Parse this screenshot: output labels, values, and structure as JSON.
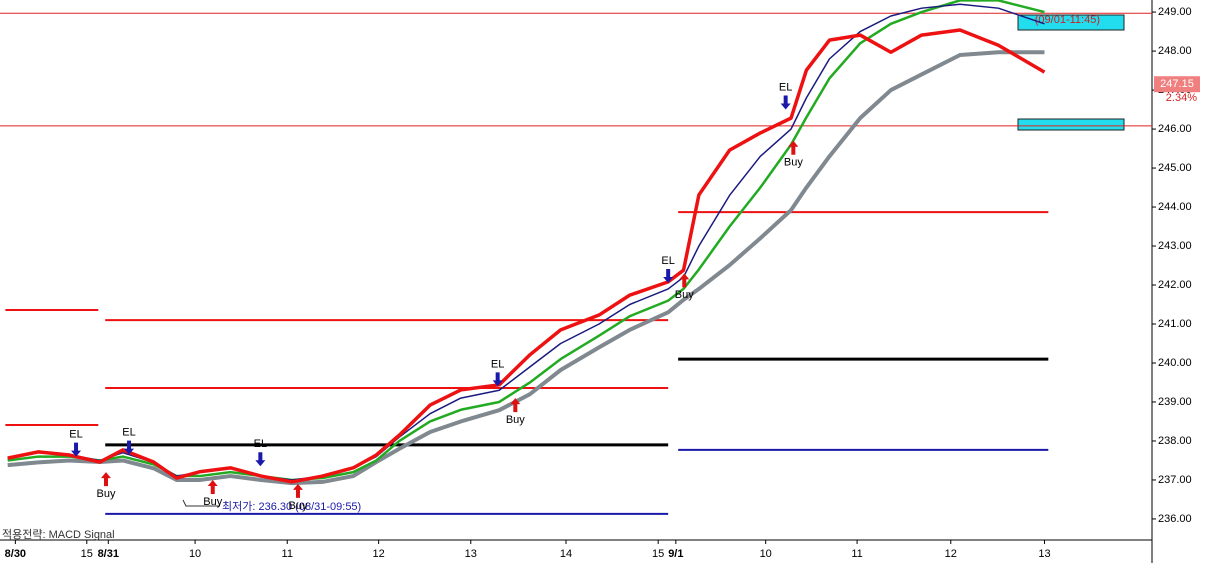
{
  "chart_data": {
    "type": "line",
    "strategy": "적용전략: MACD Signal",
    "low_note": "최저가: 236.30 (08/31-09:55)",
    "high_note": "(09/01-11:45)",
    "last_price": 247.15,
    "change_label": "2.34%",
    "xlim": [
      0,
      150
    ],
    "ylim": [
      235.46,
      249.31
    ],
    "xticks": [
      {
        "value": 2,
        "label": "8/30"
      },
      {
        "value": 11.3,
        "label": "15"
      },
      {
        "value": 14.1,
        "label": "8/31"
      },
      {
        "value": 25.4,
        "label": "10"
      },
      {
        "value": 37.4,
        "label": "11"
      },
      {
        "value": 49.3,
        "label": "12"
      },
      {
        "value": 61.3,
        "label": "13"
      },
      {
        "value": 73.7,
        "label": "14"
      },
      {
        "value": 85.7,
        "label": "15"
      },
      {
        "value": 88,
        "label": "9/1"
      },
      {
        "value": 99.7,
        "label": "10"
      },
      {
        "value": 111.6,
        "label": "11"
      },
      {
        "value": 123.8,
        "label": "12"
      },
      {
        "value": 136,
        "label": "13"
      }
    ],
    "yticks": [
      {
        "value": 249,
        "label": "249.00"
      },
      {
        "value": 248,
        "label": "248.00"
      },
      {
        "value": 247,
        "label": "247.00"
      },
      {
        "value": 246,
        "label": "246.00"
      },
      {
        "value": 245,
        "label": "245.00"
      },
      {
        "value": 244,
        "label": "244.00"
      },
      {
        "value": 243,
        "label": "243.00"
      },
      {
        "value": 242,
        "label": "242.00"
      },
      {
        "value": 241,
        "label": "241.00"
      },
      {
        "value": 240,
        "label": "240.00"
      },
      {
        "value": 239,
        "label": "239.00"
      },
      {
        "value": 238,
        "label": "238.00"
      },
      {
        "value": 237,
        "label": "237.00"
      },
      {
        "value": 236,
        "label": "236.00"
      }
    ],
    "x": [
      1,
      5,
      9,
      13,
      16,
      20,
      23,
      26,
      30,
      34,
      38,
      42,
      46,
      49,
      52,
      56,
      60,
      65,
      69,
      73,
      78,
      82,
      87,
      89,
      91,
      95,
      99,
      103,
      105,
      108,
      112,
      116,
      120,
      125,
      130,
      136
    ],
    "series": [
      {
        "color": "#808890",
        "width": 4,
        "values": [
          237.38,
          237.45,
          237.5,
          237.46,
          237.5,
          237.3,
          237.0,
          237.0,
          237.1,
          237.0,
          236.92,
          236.95,
          237.1,
          237.46,
          237.8,
          238.23,
          238.5,
          238.79,
          239.2,
          239.82,
          240.4,
          240.85,
          241.3,
          241.62,
          241.9,
          242.51,
          243.2,
          243.92,
          244.5,
          245.3,
          246.28,
          247.0,
          247.4,
          247.9,
          247.97,
          247.97
        ]
      },
      {
        "color": "#22aa22",
        "width": 2.5,
        "values": [
          237.5,
          237.6,
          237.6,
          237.5,
          237.6,
          237.4,
          237.1,
          237.1,
          237.2,
          237.1,
          237.0,
          237.05,
          237.2,
          237.5,
          238.0,
          238.5,
          238.8,
          239.0,
          239.5,
          240.1,
          240.7,
          241.2,
          241.6,
          241.9,
          242.4,
          243.5,
          244.5,
          245.6,
          246.3,
          247.3,
          248.2,
          248.7,
          249.0,
          249.3,
          249.3,
          249.0
        ]
      },
      {
        "color": "#1a1a80",
        "width": 1.5,
        "values": [
          237.55,
          237.7,
          237.65,
          237.5,
          237.7,
          237.45,
          237.1,
          237.2,
          237.3,
          237.1,
          237.0,
          237.1,
          237.3,
          237.6,
          238.1,
          238.7,
          239.1,
          239.3,
          239.9,
          240.5,
          241.0,
          241.5,
          241.9,
          242.2,
          243.0,
          244.3,
          245.3,
          246.0,
          246.8,
          247.8,
          248.5,
          248.9,
          249.1,
          249.2,
          249.1,
          248.7
        ]
      },
      {
        "color": "#ee1111",
        "width": 3.5,
        "values": [
          237.56,
          237.72,
          237.64,
          237.46,
          237.77,
          237.46,
          237.05,
          237.21,
          237.31,
          237.1,
          236.95,
          237.1,
          237.31,
          237.64,
          238.15,
          238.92,
          239.31,
          239.44,
          240.21,
          240.85,
          241.23,
          241.74,
          242.08,
          242.38,
          244.31,
          245.46,
          245.9,
          246.28,
          247.51,
          248.28,
          248.41,
          247.97,
          248.41,
          248.54,
          248.15,
          247.46
        ]
      }
    ],
    "levels": [
      {
        "y": 248.97,
        "x0": 0,
        "x1": 150,
        "color": "#dd2222",
        "width": 1
      },
      {
        "y": 246.08,
        "x0": 0,
        "x1": 150,
        "color": "#dd2222",
        "width": 1
      },
      {
        "y": 241.36,
        "x0": 0.7,
        "x1": 12.8,
        "color": "#ee1111",
        "width": 2
      },
      {
        "y": 238.41,
        "x0": 0.7,
        "x1": 12.8,
        "color": "#ee1111",
        "width": 2
      },
      {
        "y": 241.1,
        "x0": 13.7,
        "x1": 87,
        "color": "#ee1111",
        "width": 2
      },
      {
        "y": 239.36,
        "x0": 13.7,
        "x1": 87,
        "color": "#ee1111",
        "width": 2
      },
      {
        "y": 237.9,
        "x0": 13.7,
        "x1": 87,
        "color": "#000000",
        "width": 3
      },
      {
        "y": 236.13,
        "x0": 13.7,
        "x1": 87,
        "color": "#1a1aaa",
        "width": 2
      },
      {
        "y": 243.87,
        "x0": 88.3,
        "x1": 136.5,
        "color": "#ee1111",
        "width": 2
      },
      {
        "y": 240.1,
        "x0": 88.3,
        "x1": 136.5,
        "color": "#000000",
        "width": 3
      },
      {
        "y": 237.77,
        "x0": 88.3,
        "x1": 136.5,
        "color": "#1a1aaa",
        "width": 2
      }
    ],
    "signals": [
      {
        "label": "EL",
        "x": 9.9,
        "y": 237.6
      },
      {
        "label": "EL",
        "x": 16.8,
        "y": 237.65
      },
      {
        "label": "EL",
        "x": 33.9,
        "y": 237.35
      },
      {
        "label": "EL",
        "x": 64.8,
        "y": 239.4
      },
      {
        "label": "EL",
        "x": 87,
        "y": 242.05
      },
      {
        "label": "EL",
        "x": 102.3,
        "y": 246.5
      },
      {
        "label": "Buy",
        "x": 13.8,
        "y": 237.2
      },
      {
        "label": "Buy",
        "x": 27.7,
        "y": 237.0
      },
      {
        "label": "Buy",
        "x": 38.8,
        "y": 236.9
      },
      {
        "label": "Buy",
        "x": 67.1,
        "y": 239.1
      },
      {
        "label": "Buy",
        "x": 89.1,
        "y": 242.3
      },
      {
        "label": "Buy",
        "x": 103.3,
        "y": 245.7
      }
    ]
  }
}
